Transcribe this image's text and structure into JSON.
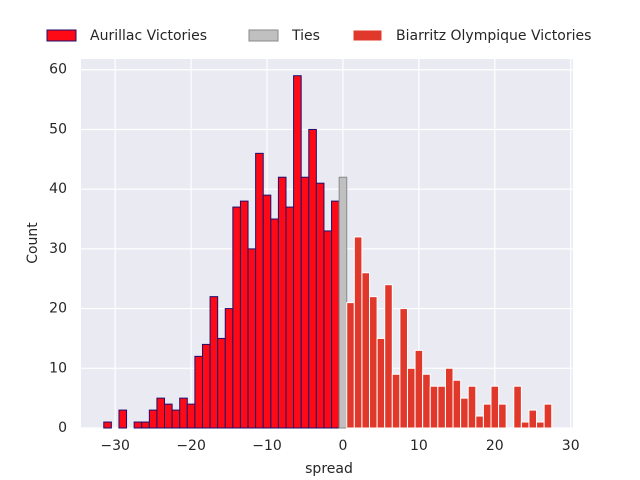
{
  "chart_data": {
    "type": "histogram",
    "xlabel": "spread",
    "ylabel": "Count",
    "series": [
      {
        "name": "Aurillac Victories",
        "color": "#fe0a16",
        "edgecolor": "#1f0f6e",
        "bins": [
          -31.5,
          -30.5,
          -29.5,
          -28.5,
          -27.5,
          -26.5,
          -25.5,
          -24.5,
          -23.5,
          -22.5,
          -21.5,
          -20.5,
          -19.5,
          -18.5,
          -17.5,
          -16.5,
          -15.5,
          -14.5,
          -13.5,
          -12.5,
          -11.5,
          -10.5,
          -9.5,
          -8.5,
          -7.5,
          -6.5,
          -5.5,
          -4.5,
          -3.5,
          -2.5,
          -1.5,
          -0.5
        ],
        "values": [
          1,
          0,
          3,
          0,
          1,
          1,
          3,
          5,
          4,
          3,
          5,
          4,
          12,
          14,
          22,
          15,
          20,
          37,
          38,
          30,
          46,
          39,
          35,
          42,
          37,
          59,
          42,
          50,
          41,
          33,
          38
        ]
      },
      {
        "name": "Ties",
        "color": "#c0c0c0",
        "edgecolor": "#8a8a8a",
        "bins": [
          -0.5,
          0.5
        ],
        "values": [
          42
        ]
      },
      {
        "name": "Biarritz Olympique Victories",
        "color": "#e0392b",
        "edgecolor": "#ffffff",
        "bins": [
          0.5,
          1.5,
          2.5,
          3.5,
          4.5,
          5.5,
          6.5,
          7.5,
          8.5,
          9.5,
          10.5,
          11.5,
          12.5,
          13.5,
          14.5,
          15.5,
          16.5,
          17.5,
          18.5,
          19.5,
          20.5,
          21.5,
          22.5,
          23.5,
          24.5,
          25.5,
          26.5,
          27.5
        ],
        "values": [
          21,
          32,
          26,
          22,
          15,
          24,
          9,
          20,
          10,
          13,
          9,
          7,
          7,
          10,
          8,
          5,
          7,
          2,
          4,
          7,
          4,
          0,
          7,
          1,
          3,
          1,
          4
        ]
      }
    ],
    "xlim": [
      -34.5,
      30.3
    ],
    "ylim": [
      0,
      61.8
    ],
    "xticks": [
      {
        "value": -30,
        "label": "−30"
      },
      {
        "value": -20,
        "label": "−20"
      },
      {
        "value": -10,
        "label": "−10"
      },
      0,
      10,
      20,
      30
    ],
    "yticks": [
      0,
      10,
      20,
      30,
      40,
      50,
      60
    ],
    "grid": true,
    "legend": "top"
  }
}
